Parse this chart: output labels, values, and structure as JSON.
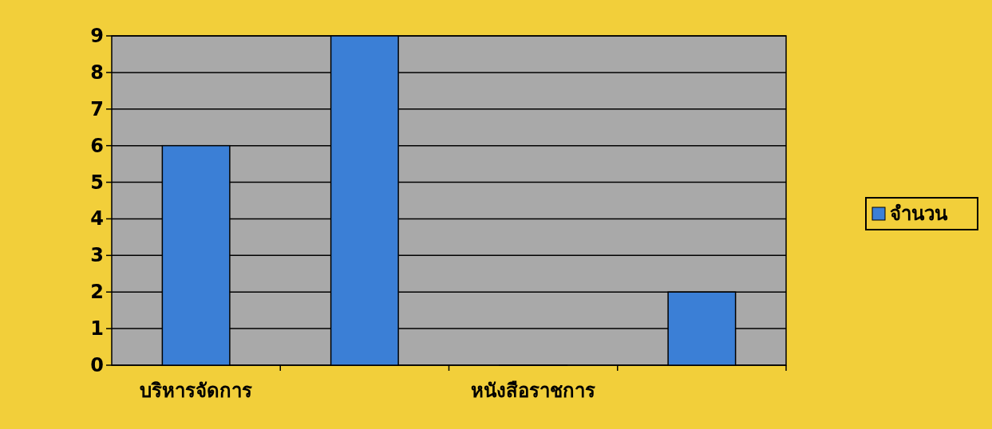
{
  "chart_data": {
    "type": "bar",
    "categories": [
      "บริหารจัดการ",
      null,
      "หนังสือราชการ",
      null
    ],
    "series": [
      {
        "name": "จำนวน",
        "color": "#3b7fd6",
        "values": [
          6,
          9,
          0,
          2
        ]
      }
    ],
    "ylim": [
      0,
      9
    ],
    "yticks": [
      0,
      1,
      2,
      3,
      4,
      5,
      6,
      7,
      8,
      9
    ],
    "grid": "y",
    "legend": "right"
  }
}
